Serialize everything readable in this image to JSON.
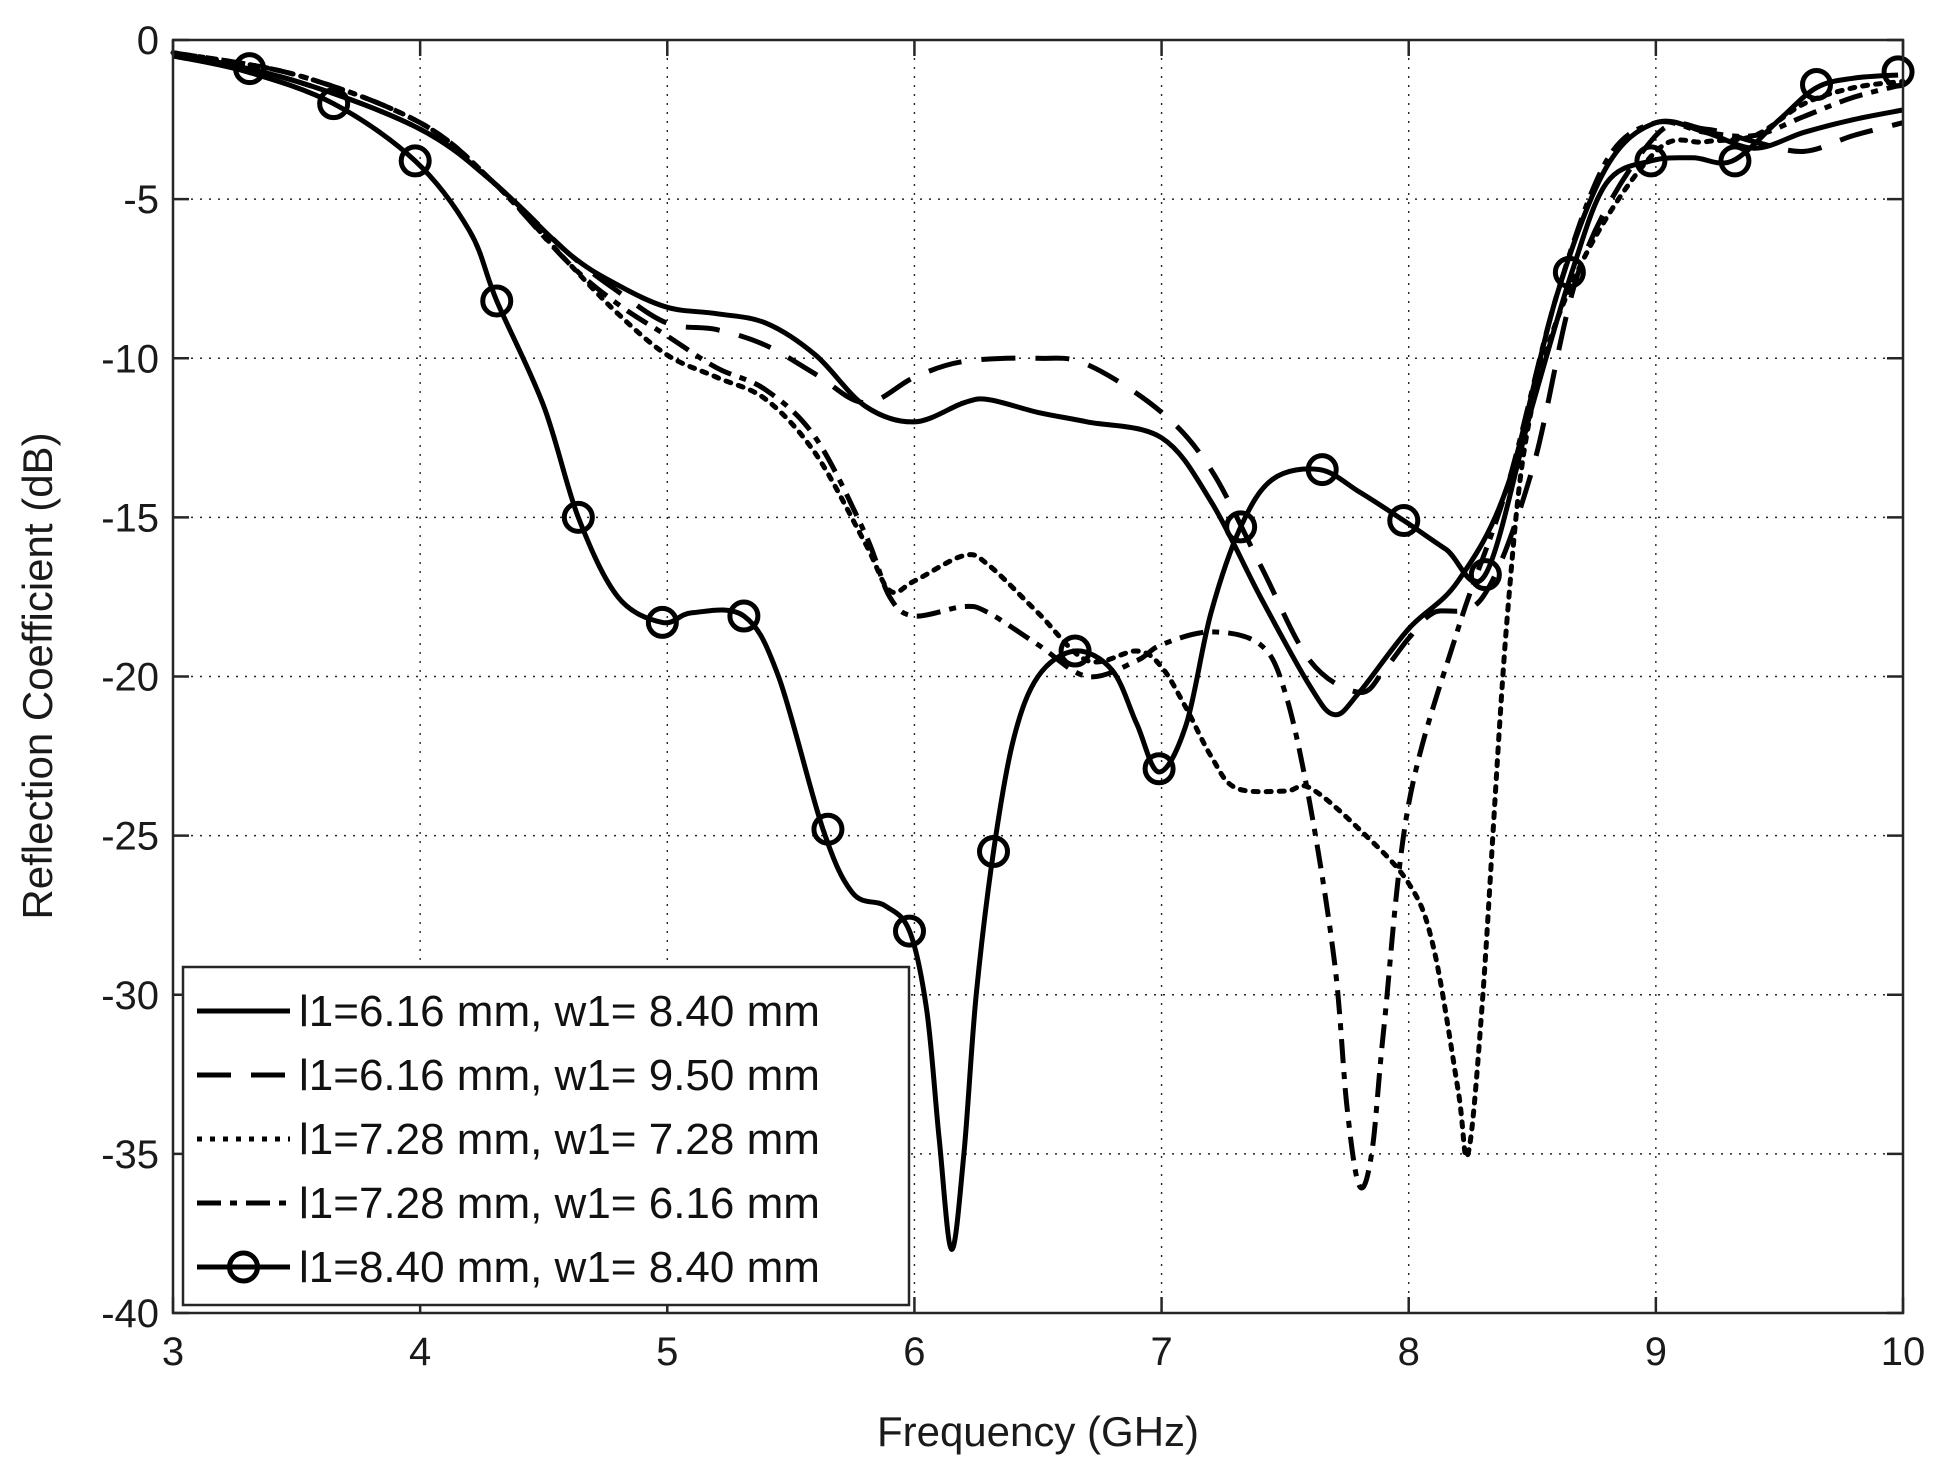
{
  "chart_data": {
    "type": "line",
    "title": "",
    "xlabel": "Frequency (GHz)",
    "ylabel": "Reflection Coefficient (dB)",
    "xlim": [
      3,
      10
    ],
    "ylim": [
      -40,
      0
    ],
    "xticks": [
      3,
      4,
      5,
      6,
      7,
      8,
      9,
      10
    ],
    "yticks": [
      0,
      -5,
      -10,
      -15,
      -20,
      -25,
      -30,
      -35,
      -40
    ],
    "xtick_labels": [
      "3",
      "4",
      "5",
      "6",
      "7",
      "8",
      "9",
      "10"
    ],
    "ytick_labels": [
      "0",
      "-5",
      "-10",
      "-15",
      "-20",
      "-25",
      "-30",
      "-35",
      "-40"
    ],
    "grid": true,
    "legend_position": "bottom-left",
    "series": [
      {
        "name": "l1=6.16 mm, w1= 8.40 mm",
        "style": "solid",
        "color": "#000000",
        "x": [
          3.0,
          3.5,
          4.0,
          4.3,
          4.6,
          4.8,
          5.0,
          5.2,
          5.4,
          5.6,
          5.8,
          6.0,
          6.2,
          6.3,
          6.5,
          6.7,
          7.0,
          7.2,
          7.4,
          7.6,
          7.7,
          7.8,
          8.0,
          8.2,
          8.4,
          8.6,
          8.8,
          9.0,
          9.2,
          9.4,
          9.6,
          9.8,
          10.0
        ],
        "y": [
          -0.4,
          -1.3,
          -2.8,
          -4.5,
          -6.7,
          -7.7,
          -8.4,
          -8.6,
          -8.9,
          -9.9,
          -11.5,
          -12.0,
          -11.4,
          -11.3,
          -11.7,
          -12.0,
          -12.5,
          -14.5,
          -17.5,
          -20.3,
          -21.2,
          -20.5,
          -18.5,
          -17.0,
          -14.0,
          -8.0,
          -4.0,
          -2.6,
          -2.9,
          -3.4,
          -2.9,
          -2.5,
          -2.2
        ]
      },
      {
        "name": "l1=6.16 mm, w1= 9.50 mm",
        "style": "long-dash",
        "color": "#000000",
        "x": [
          3.0,
          3.5,
          4.0,
          4.3,
          4.6,
          4.8,
          5.0,
          5.2,
          5.4,
          5.6,
          5.8,
          6.0,
          6.2,
          6.5,
          6.7,
          7.0,
          7.2,
          7.4,
          7.6,
          7.8,
          7.9,
          8.0,
          8.1,
          8.3,
          8.5,
          8.7,
          9.0,
          9.2,
          9.4,
          9.6,
          9.8,
          10.0
        ],
        "y": [
          -0.4,
          -1.3,
          -2.8,
          -4.5,
          -6.7,
          -7.9,
          -8.9,
          -9.1,
          -9.6,
          -10.5,
          -11.4,
          -10.6,
          -10.1,
          -10.0,
          -10.2,
          -11.7,
          -13.5,
          -16.5,
          -19.5,
          -20.5,
          -19.8,
          -18.8,
          -18.0,
          -17.5,
          -13.5,
          -7.0,
          -3.0,
          -2.8,
          -3.2,
          -3.5,
          -3.0,
          -2.6
        ]
      },
      {
        "name": "l1=7.28 mm, w1= 7.28 mm",
        "style": "dotted",
        "color": "#000000",
        "x": [
          3.0,
          3.5,
          4.0,
          4.3,
          4.6,
          4.8,
          5.0,
          5.2,
          5.4,
          5.6,
          5.8,
          5.9,
          6.0,
          6.2,
          6.3,
          6.5,
          6.7,
          6.9,
          7.0,
          7.1,
          7.2,
          7.3,
          7.5,
          7.6,
          7.8,
          8.0,
          8.1,
          8.2,
          8.24,
          8.3,
          8.4,
          8.5,
          8.7,
          9.0,
          9.2,
          9.4,
          9.6,
          9.8,
          10.0
        ],
        "y": [
          -0.4,
          -1.1,
          -2.6,
          -4.5,
          -7.0,
          -8.6,
          -9.9,
          -10.6,
          -11.3,
          -13.0,
          -15.8,
          -17.3,
          -17.0,
          -16.2,
          -16.5,
          -18.0,
          -19.5,
          -19.2,
          -19.7,
          -21.0,
          -22.5,
          -23.5,
          -23.6,
          -23.5,
          -24.8,
          -26.5,
          -28.5,
          -33.0,
          -35.0,
          -30.0,
          -18.0,
          -11.5,
          -7.0,
          -3.5,
          -3.2,
          -3.0,
          -2.0,
          -1.5,
          -1.3
        ]
      },
      {
        "name": "l1=7.28 mm, w1= 6.16 mm",
        "style": "dash-dot",
        "color": "#000000",
        "x": [
          3.0,
          3.5,
          4.0,
          4.3,
          4.6,
          4.8,
          5.0,
          5.2,
          5.4,
          5.6,
          5.8,
          5.9,
          6.0,
          6.2,
          6.3,
          6.5,
          6.7,
          6.9,
          7.0,
          7.2,
          7.4,
          7.5,
          7.6,
          7.7,
          7.75,
          7.8,
          7.85,
          7.9,
          8.0,
          8.2,
          8.4,
          8.6,
          8.8,
          9.0,
          9.2,
          9.4,
          9.6,
          9.8,
          10.0
        ],
        "y": [
          -0.4,
          -1.1,
          -2.6,
          -4.5,
          -7.0,
          -8.3,
          -9.3,
          -10.3,
          -11.0,
          -12.5,
          -15.5,
          -17.5,
          -18.1,
          -17.8,
          -18.0,
          -19.0,
          -20.0,
          -19.5,
          -19.0,
          -18.6,
          -19.0,
          -20.5,
          -24.0,
          -29.0,
          -33.5,
          -36.0,
          -35.0,
          -31.0,
          -24.0,
          -18.5,
          -14.0,
          -8.0,
          -3.8,
          -2.6,
          -2.9,
          -3.0,
          -2.4,
          -1.8,
          -1.4
        ]
      },
      {
        "name": "l1=8.40 mm, w1= 8.40 mm",
        "style": "solid-circle",
        "color": "#000000",
        "x": [
          3.0,
          3.3,
          3.65,
          3.98,
          4.2,
          4.31,
          4.5,
          4.64,
          4.8,
          4.98,
          5.1,
          5.31,
          5.45,
          5.63,
          5.75,
          5.88,
          5.98,
          6.05,
          6.1,
          6.15,
          6.2,
          6.25,
          6.32,
          6.4,
          6.5,
          6.65,
          6.8,
          6.9,
          6.99,
          7.1,
          7.2,
          7.32,
          7.45,
          7.64,
          7.8,
          7.98,
          8.15,
          8.31,
          8.5,
          8.66,
          8.8,
          8.98,
          9.15,
          9.31,
          9.5,
          9.65,
          9.8,
          9.98
        ],
        "y": [
          -0.5,
          -1.0,
          -2.0,
          -3.8,
          -6.0,
          -8.2,
          -11.5,
          -15.0,
          -17.5,
          -18.3,
          -18.0,
          -18.1,
          -20.0,
          -24.8,
          -26.8,
          -27.2,
          -28.0,
          -30.5,
          -34.5,
          -38.0,
          -35.0,
          -30.0,
          -25.5,
          -22.0,
          -20.0,
          -19.2,
          -19.8,
          -21.5,
          -23.0,
          -21.5,
          -18.0,
          -15.3,
          -13.8,
          -13.5,
          -14.2,
          -15.1,
          -16.0,
          -16.8,
          -11.5,
          -7.3,
          -4.5,
          -3.8,
          -3.7,
          -3.8,
          -2.5,
          -1.5,
          -1.2,
          -1.1
        ]
      }
    ],
    "markers": {
      "series": "l1=8.40 mm, w1= 8.40 mm",
      "x": [
        3.31,
        3.65,
        3.98,
        4.31,
        4.64,
        4.98,
        5.31,
        5.65,
        5.98,
        6.32,
        6.65,
        6.99,
        7.32,
        7.65,
        7.98,
        8.31,
        8.65,
        8.98,
        9.32,
        9.65,
        9.98
      ],
      "y": [
        -0.9,
        -2.0,
        -3.8,
        -8.2,
        -15.0,
        -18.3,
        -18.1,
        -24.8,
        -28.0,
        -25.5,
        -19.2,
        -22.9,
        -15.3,
        -13.5,
        -15.1,
        -16.8,
        -7.3,
        -3.8,
        -3.8,
        -1.4,
        -1.0
      ]
    }
  }
}
